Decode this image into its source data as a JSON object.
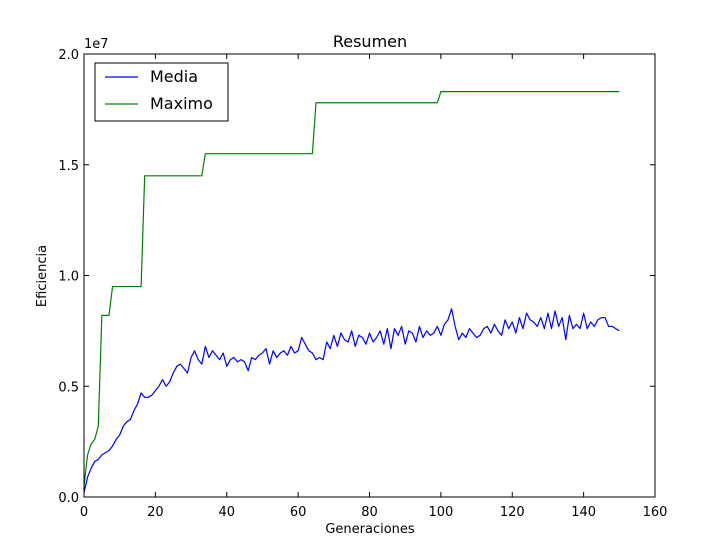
{
  "chart_data": {
    "type": "line",
    "title": "Resumen",
    "xlabel": "Generaciones",
    "ylabel": "Eficiencia",
    "y_offset_label": "1e7",
    "xlim": [
      0,
      160
    ],
    "ylim": [
      0,
      20000000
    ],
    "xticks": [
      0,
      20,
      40,
      60,
      80,
      100,
      120,
      140,
      160
    ],
    "xtick_labels": [
      "0",
      "20",
      "40",
      "60",
      "80",
      "100",
      "120",
      "140",
      "160"
    ],
    "yticks": [
      0,
      5000000,
      10000000,
      15000000,
      20000000
    ],
    "ytick_labels": [
      "0.0",
      "0.5",
      "1.0",
      "1.5",
      "2.0"
    ],
    "grid": false,
    "legend_position": "top-left",
    "series": [
      {
        "name": "Media",
        "color": "#0000ff",
        "x": [
          0,
          1,
          2,
          3,
          4,
          5,
          6,
          7,
          8,
          9,
          10,
          11,
          12,
          13,
          14,
          15,
          16,
          17,
          18,
          19,
          20,
          21,
          22,
          23,
          24,
          25,
          26,
          27,
          28,
          29,
          30,
          31,
          32,
          33,
          34,
          35,
          36,
          37,
          38,
          39,
          40,
          41,
          42,
          43,
          44,
          45,
          46,
          47,
          48,
          49,
          50,
          51,
          52,
          53,
          54,
          55,
          56,
          57,
          58,
          59,
          60,
          61,
          62,
          63,
          64,
          65,
          66,
          67,
          68,
          69,
          70,
          71,
          72,
          73,
          74,
          75,
          76,
          77,
          78,
          79,
          80,
          81,
          82,
          83,
          84,
          85,
          86,
          87,
          88,
          89,
          90,
          91,
          92,
          93,
          94,
          95,
          96,
          97,
          98,
          99,
          100,
          101,
          102,
          103,
          104,
          105,
          106,
          107,
          108,
          109,
          110,
          111,
          112,
          113,
          114,
          115,
          116,
          117,
          118,
          119,
          120,
          121,
          122,
          123,
          124,
          125,
          126,
          127,
          128,
          129,
          130,
          131,
          132,
          133,
          134,
          135,
          136,
          137,
          138,
          139,
          140,
          141,
          142,
          143,
          144,
          145,
          146,
          147,
          148,
          149,
          150
        ],
        "y": [
          200000,
          900000,
          1300000,
          1600000,
          1700000,
          1900000,
          2000000,
          2100000,
          2300000,
          2600000,
          2800000,
          3200000,
          3400000,
          3500000,
          3900000,
          4200000,
          4700000,
          4500000,
          4500000,
          4600000,
          4800000,
          5000000,
          5300000,
          5000000,
          5200000,
          5600000,
          5900000,
          6000000,
          5800000,
          5600000,
          6300000,
          6600000,
          6200000,
          6000000,
          6800000,
          6300000,
          6600000,
          6400000,
          6200000,
          6500000,
          5900000,
          6200000,
          6300000,
          6100000,
          6200000,
          6100000,
          5700000,
          6300000,
          6200000,
          6400000,
          6500000,
          6700000,
          6000000,
          6600000,
          6300000,
          6500000,
          6600000,
          6400000,
          6800000,
          6500000,
          6600000,
          7200000,
          6900000,
          6600000,
          6500000,
          6200000,
          6300000,
          6200000,
          7000000,
          6700000,
          7300000,
          6800000,
          7400000,
          7100000,
          7000000,
          7500000,
          6800000,
          7300000,
          7200000,
          6900000,
          7400000,
          7000000,
          7200000,
          7500000,
          6900000,
          7600000,
          6700000,
          7600000,
          7300000,
          7700000,
          6900000,
          7500000,
          7400000,
          7000000,
          7700000,
          7200000,
          7500000,
          7300000,
          7400000,
          7700000,
          7300000,
          7800000,
          8000000,
          8500000,
          7700000,
          7100000,
          7400000,
          7200000,
          7600000,
          7400000,
          7200000,
          7300000,
          7600000,
          7700000,
          7400000,
          7800000,
          7500000,
          7300000,
          8000000,
          7600000,
          7900000,
          7400000,
          8100000,
          7600000,
          8300000,
          8000000,
          7900000,
          7700000,
          8100000,
          7600000,
          8300000,
          7600000,
          8400000,
          7700000,
          8100000,
          7100000,
          8200000,
          7600000,
          7800000,
          7600000,
          8300000,
          7600000,
          7900000,
          7700000,
          8000000,
          8100000,
          8100000,
          7700000,
          7700000,
          7600000,
          7500000
        ]
      },
      {
        "name": "Maximo",
        "color": "#008000",
        "x": [
          0,
          1,
          2,
          3,
          4,
          5,
          6,
          7,
          8,
          16,
          17,
          33,
          34,
          64,
          65,
          99,
          100,
          150
        ],
        "y": [
          500000,
          1900000,
          2400000,
          2600000,
          3200000,
          8200000,
          8200000,
          8200000,
          9500000,
          9500000,
          14500000,
          14500000,
          15500000,
          15500000,
          17800000,
          17800000,
          18300000,
          18300000
        ]
      }
    ]
  }
}
